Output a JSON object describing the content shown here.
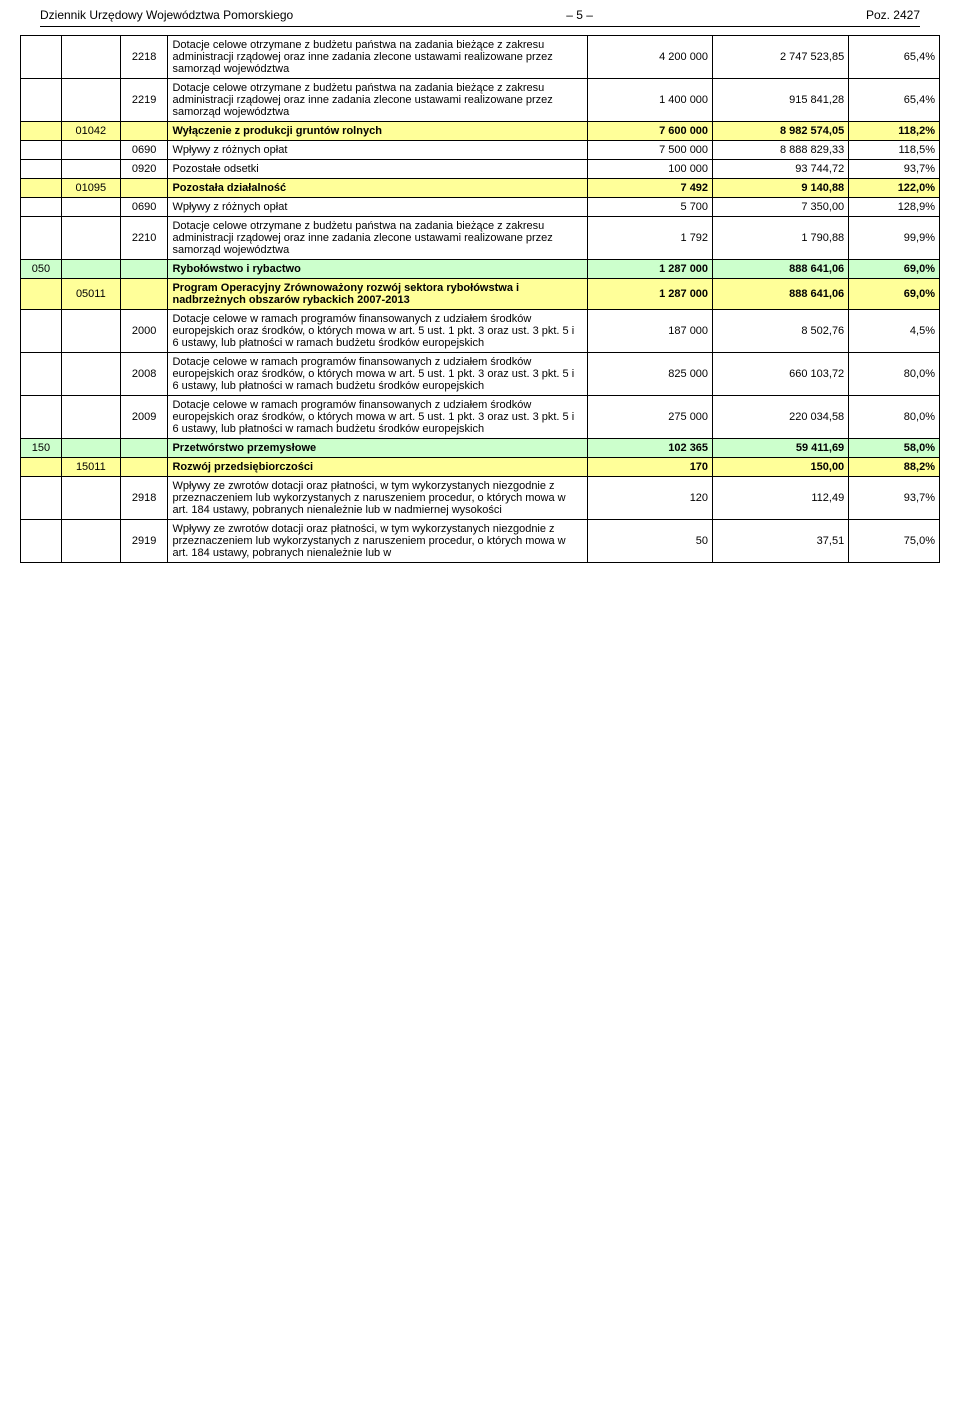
{
  "header": {
    "left": "Dziennik Urzędowy Województwa Pomorskiego",
    "center": "– 5 –",
    "right": "Poz. 2427"
  },
  "rows": [
    {
      "type": "white",
      "a": "",
      "b": "",
      "c": "2218",
      "d": "Dotacje celowe otrzymane z budżetu państwa na zadania bieżące z zakresu administracji rządowej oraz inne zadania zlecone ustawami realizowane przez samorząd województwa",
      "e": "4 200 000",
      "f": "2 747 523,85",
      "g": "65,4%"
    },
    {
      "type": "white",
      "a": "",
      "b": "",
      "c": "2219",
      "d": "Dotacje celowe otrzymane z budżetu państwa na zadania bieżące z zakresu administracji rządowej oraz inne zadania zlecone ustawami realizowane przez samorząd województwa",
      "e": "1 400 000",
      "f": "915 841,28",
      "g": "65,4%"
    },
    {
      "type": "yellow",
      "a": "",
      "b": "01042",
      "c": "",
      "d": "<b>Wyłączenie z produkcji gruntów rolnych</b>",
      "e": "<b>7 600 000</b>",
      "f": "<b>8 982 574,05</b>",
      "g": "<b>118,2%</b>"
    },
    {
      "type": "white",
      "a": "",
      "b": "",
      "c": "0690",
      "d": "Wpływy z różnych opłat",
      "e": "7 500 000",
      "f": "8 888 829,33",
      "g": "118,5%"
    },
    {
      "type": "white",
      "a": "",
      "b": "",
      "c": "0920",
      "d": "Pozostałe odsetki",
      "e": "100 000",
      "f": "93 744,72",
      "g": "93,7%"
    },
    {
      "type": "yellow",
      "a": "",
      "b": "01095",
      "c": "",
      "d": "<b>Pozostała działalność</b>",
      "e": "<b>7 492</b>",
      "f": "<b>9 140,88</b>",
      "g": "<b>122,0%</b>"
    },
    {
      "type": "white",
      "a": "",
      "b": "",
      "c": "0690",
      "d": "Wpływy z różnych opłat",
      "e": "5 700",
      "f": "7 350,00",
      "g": "128,9%"
    },
    {
      "type": "white",
      "a": "",
      "b": "",
      "c": "2210",
      "d": "Dotacje celowe otrzymane z budżetu państwa na zadania bieżące z zakresu administracji rządowej oraz inne zadania zlecone ustawami realizowane przez samorząd województwa",
      "e": "1 792",
      "f": "1 790,88",
      "g": "99,9%"
    },
    {
      "type": "green",
      "a": "050",
      "b": "",
      "c": "",
      "d": "<b>Rybołówstwo i rybactwo</b>",
      "e": "<b>1 287 000</b>",
      "f": "<b>888 641,06</b>",
      "g": "<b>69,0%</b>"
    },
    {
      "type": "yellow",
      "a": "",
      "b": "05011",
      "c": "",
      "d": "<b>Program Operacyjny Zrównoważony rozwój sektora rybołówstwa i nadbrzeżnych obszarów rybackich 2007-2013</b>",
      "e": "<b>1 287 000</b>",
      "f": "<b>888 641,06</b>",
      "g": "<b>69,0%</b>"
    },
    {
      "type": "white",
      "a": "",
      "b": "",
      "c": "2000",
      "d": "Dotacje celowe w ramach programów finansowanych z udziałem środków europejskich oraz środków, o których mowa w art. 5 ust. 1 pkt. 3 oraz ust. 3 pkt. 5 i 6 ustawy, lub płatności w ramach budżetu środków europejskich",
      "e": "187 000",
      "f": "8 502,76",
      "g": "4,5%"
    },
    {
      "type": "white",
      "a": "",
      "b": "",
      "c": "2008",
      "d": "Dotacje celowe w ramach programów finansowanych z udziałem środków europejskich oraz środków, o których mowa w art. 5 ust. 1 pkt. 3 oraz ust. 3 pkt. 5 i 6 ustawy, lub płatności w ramach budżetu środków europejskich",
      "e": "825 000",
      "f": "660 103,72",
      "g": "80,0%"
    },
    {
      "type": "white",
      "a": "",
      "b": "",
      "c": "2009",
      "d": "Dotacje celowe w ramach programów finansowanych z udziałem środków europejskich oraz środków, o których mowa w art. 5 ust. 1 pkt. 3 oraz ust. 3 pkt. 5 i 6 ustawy, lub płatności w ramach budżetu środków europejskich",
      "e": "275 000",
      "f": "220 034,58",
      "g": "80,0%"
    },
    {
      "type": "green",
      "a": "150",
      "b": "",
      "c": "",
      "d": "<b>Przetwórstwo przemysłowe</b>",
      "e": "<b>102 365</b>",
      "f": "<b>59 411,69</b>",
      "g": "<b>58,0%</b>"
    },
    {
      "type": "yellow",
      "a": "",
      "b": "15011",
      "c": "",
      "d": "<b>Rozwój przedsiębiorczości</b>",
      "e": "<b>170</b>",
      "f": "<b>150,00</b>",
      "g": "<b>88,2%</b>"
    },
    {
      "type": "white",
      "a": "",
      "b": "",
      "c": "2918",
      "d": "Wpływy ze zwrotów dotacji oraz płatności, w tym wykorzystanych niezgodnie z przeznaczeniem lub wykorzystanych z naruszeniem procedur, o których mowa w art. 184 ustawy, pobranych nienależnie lub w nadmiernej wysokości",
      "e": "120",
      "f": "112,49",
      "g": "93,7%"
    },
    {
      "type": "white",
      "a": "",
      "b": "",
      "c": "2919",
      "d": "Wpływy ze zwrotów dotacji oraz płatności, w tym wykorzystanych niezgodnie z przeznaczeniem lub wykorzystanych z naruszeniem procedur, o których mowa w art. 184 ustawy, pobranych nienależnie lub w",
      "e": "50",
      "f": "37,51",
      "g": "75,0%"
    }
  ]
}
